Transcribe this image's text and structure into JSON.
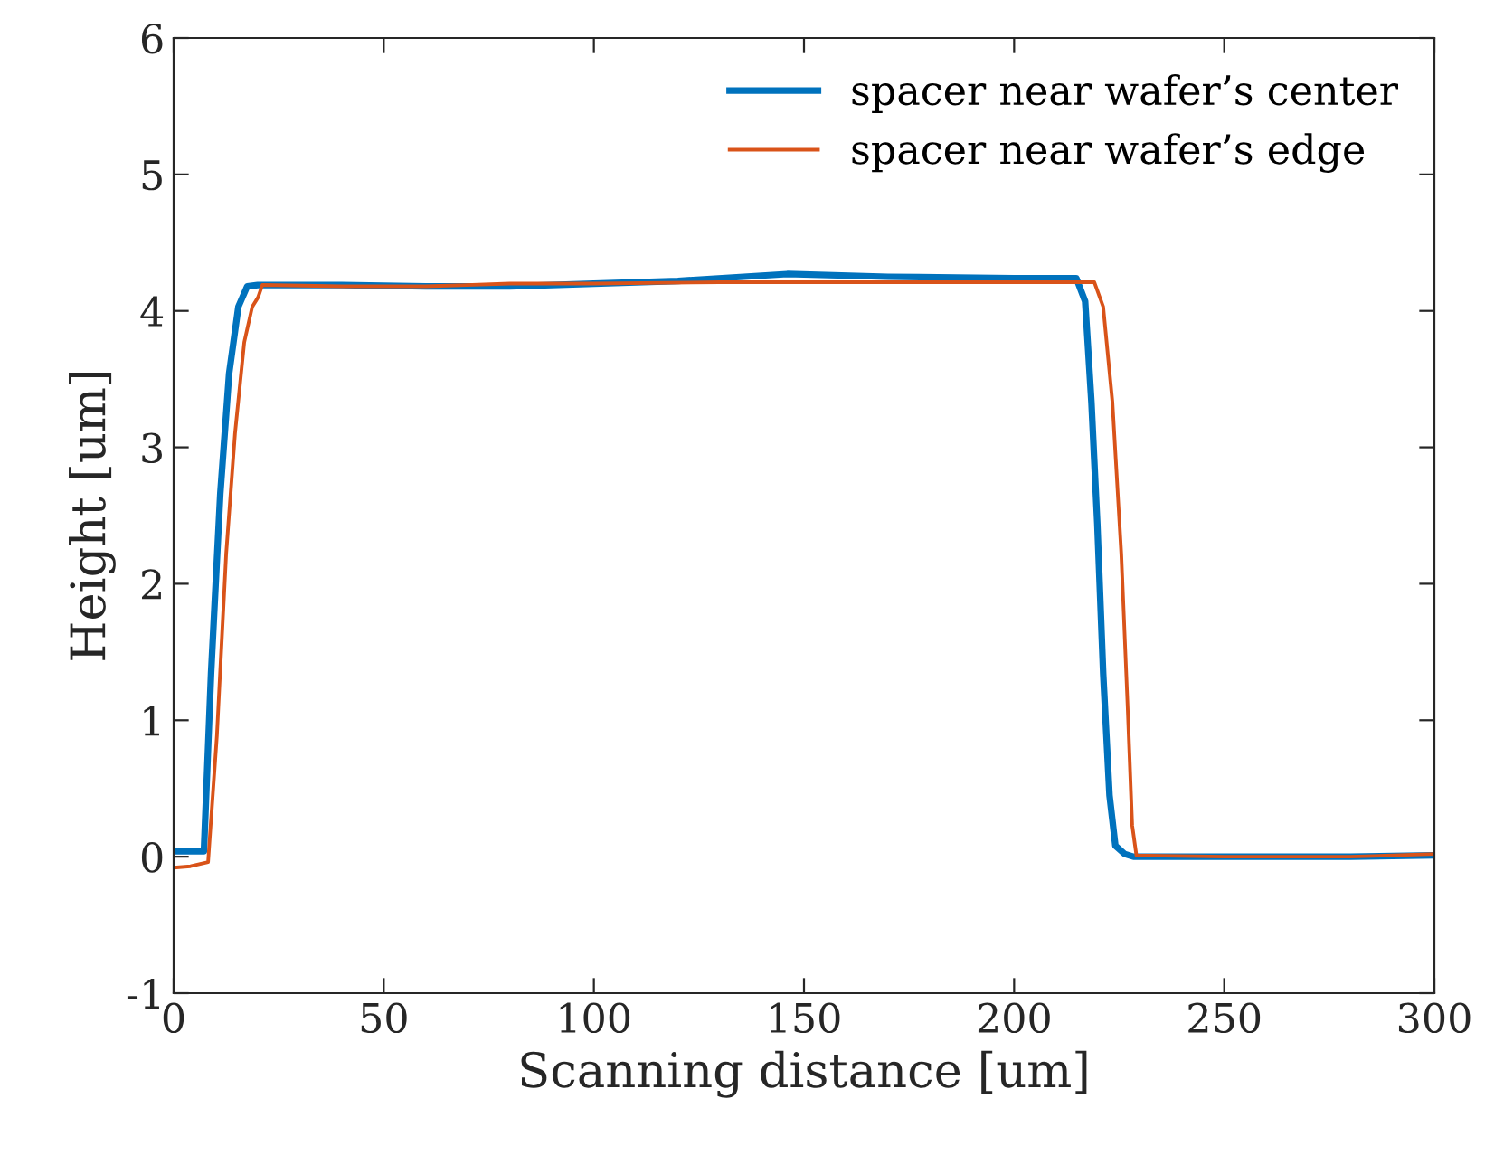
{
  "chart_data": {
    "type": "line",
    "xlabel": "Scanning distance [um]",
    "ylabel": "Height [um]",
    "xlim": [
      0,
      300
    ],
    "ylim": [
      -1,
      6
    ],
    "xticks": [
      0,
      50,
      100,
      150,
      200,
      250,
      300
    ],
    "yticks": [
      -1,
      0,
      1,
      2,
      3,
      4,
      5,
      6
    ],
    "grid": false,
    "legend": "top right",
    "marker": "none",
    "line_style": "solid",
    "series": [
      {
        "name": "spacer near wafer’s center",
        "color": "#0072bd",
        "x": [
          0,
          4,
          7.2,
          8.9,
          11.1,
          13.2,
          15.4,
          17.5,
          20,
          40,
          60,
          80,
          100,
          120,
          146,
          170,
          200,
          214.8,
          216.9,
          218.4,
          219.8,
          221.2,
          222.7,
          224.1,
          226.3,
          228.4,
          250,
          280,
          300
        ],
        "values": [
          0.04,
          0.04,
          0.04,
          1.34,
          2.66,
          3.54,
          4.03,
          4.18,
          4.19,
          4.19,
          4.18,
          4.18,
          4.2,
          4.22,
          4.27,
          4.25,
          4.24,
          4.24,
          4.07,
          3.33,
          2.44,
          1.34,
          0.45,
          0.08,
          0.02,
          0,
          0,
          0,
          0.01
        ]
      },
      {
        "name": "spacer near wafer’s edge",
        "color": "#d95319",
        "x": [
          0,
          4,
          8.2,
          10.3,
          12.5,
          14.6,
          16.8,
          18.7,
          20.1,
          21.1,
          40,
          60,
          80,
          100,
          130,
          160,
          200,
          219.1,
          221.2,
          223.4,
          225.5,
          227,
          228.1,
          229.1,
          250,
          280,
          300
        ],
        "values": [
          -0.08,
          -0.07,
          -0.04,
          0.89,
          2.22,
          3.1,
          3.77,
          4.03,
          4.1,
          4.19,
          4.18,
          4.18,
          4.2,
          4.2,
          4.21,
          4.21,
          4.21,
          4.21,
          4.03,
          3.33,
          2.22,
          1.11,
          0.23,
          0.01,
          0,
          0,
          0.02
        ]
      }
    ]
  }
}
